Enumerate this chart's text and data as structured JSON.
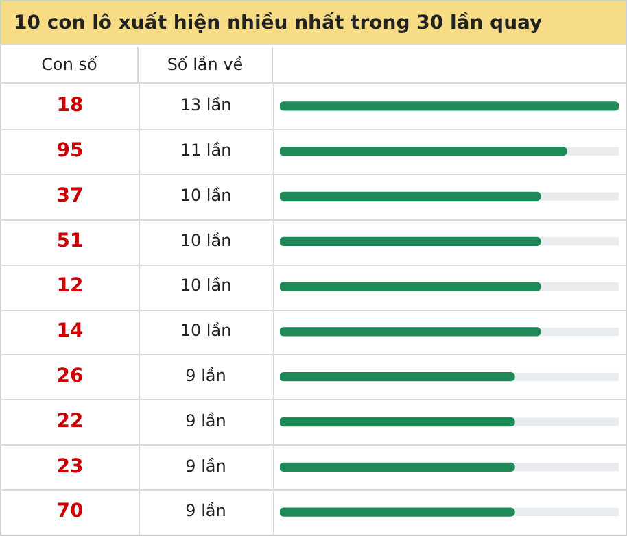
{
  "chart_data": {
    "type": "bar",
    "orientation": "horizontal",
    "title": "10 con lô xuất hiện nhiều nhất trong 30 lần quay",
    "ylabel": "Con số",
    "xlabel": "Số lần về",
    "categories": [
      "18",
      "95",
      "37",
      "51",
      "12",
      "14",
      "26",
      "22",
      "23",
      "70"
    ],
    "values": [
      13,
      11,
      10,
      10,
      10,
      10,
      9,
      9,
      9,
      9
    ],
    "value_labels": [
      "13 lần",
      "11 lần",
      "10 lần",
      "10 lần",
      "10 lần",
      "10 lần",
      "9 lần",
      "9 lần",
      "9 lần",
      "9 lần"
    ],
    "color": "#1e8a57",
    "xlim": [
      0,
      13
    ],
    "tick_labels": "y"
  }
}
